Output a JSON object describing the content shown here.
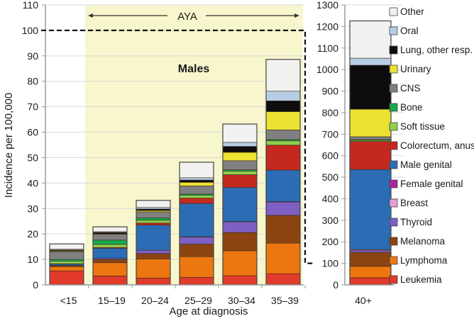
{
  "chart_data": {
    "type": "bar",
    "stacked": true,
    "title": "Males",
    "xlabel": "Age at diagnosis",
    "ylabel": "Incidence per 100,000",
    "bracket_label": "AYA",
    "bracket_range": [
      "15–19",
      "35–39"
    ],
    "left_panel": {
      "categories": [
        "<15",
        "15–19",
        "20–24",
        "25–29",
        "30–34",
        "35–39"
      ],
      "ylim": [
        0,
        110
      ],
      "yticks": [
        0,
        10,
        20,
        30,
        40,
        50,
        60,
        70,
        80,
        90,
        100,
        110
      ],
      "zoom_reference_line": 100
    },
    "right_panel": {
      "categories": [
        "40+"
      ],
      "ylim": [
        0,
        1300
      ],
      "yticks": [
        0,
        100,
        200,
        300,
        400,
        500,
        600,
        700,
        800,
        900,
        1000,
        1100,
        1200,
        1300
      ],
      "zoom_reference_range": [
        100,
        1200
      ]
    },
    "grid": true,
    "legend_position": "right",
    "series": [
      {
        "name": "Leukemia",
        "color": "#e03a2a",
        "values": [
          5.5,
          3.5,
          2.7,
          3.0,
          3.6,
          4.4
        ],
        "values_40plus": [
          33
        ]
      },
      {
        "name": "Lymphoma",
        "color": "#ec760f",
        "values": [
          1.7,
          5.2,
          7.5,
          8.1,
          9.8,
          12.0
        ],
        "values_40plus": [
          53
        ]
      },
      {
        "name": "Melanoma",
        "color": "#8b4410",
        "values": [
          0.3,
          1.3,
          2.1,
          4.9,
          7.2,
          10.9
        ],
        "values_40plus": [
          65
        ]
      },
      {
        "name": "Thyroid",
        "color": "#7e5fc2",
        "values": [
          0.1,
          0.4,
          1.3,
          2.8,
          4.2,
          5.3
        ],
        "values_40plus": [
          10
        ]
      },
      {
        "name": "Breast",
        "color": "#e2a0d8",
        "values": [
          0.0,
          0.0,
          0.0,
          0.1,
          0.1,
          0.1
        ],
        "values_40plus": [
          3
        ]
      },
      {
        "name": "Female genital",
        "color": "#b0239c",
        "values": [
          0.0,
          0.0,
          0.0,
          0.0,
          0.0,
          0.0
        ],
        "values_40plus": [
          0
        ]
      },
      {
        "name": "Male genital",
        "color": "#2b6cb4",
        "values": [
          0.6,
          4.0,
          9.9,
          13.1,
          13.4,
          12.4
        ],
        "values_40plus": [
          372
        ]
      },
      {
        "name": "Colorectum, anus",
        "color": "#c5281f",
        "values": [
          0.1,
          0.3,
          0.8,
          2.1,
          5.0,
          9.8
        ],
        "values_40plus": [
          130
        ]
      },
      {
        "name": "Soft tissue",
        "color": "#8fce4f",
        "values": [
          1.0,
          1.2,
          1.1,
          1.1,
          1.4,
          1.7
        ],
        "values_40plus": [
          5
        ]
      },
      {
        "name": "Bone",
        "color": "#19a84c",
        "values": [
          0.7,
          1.7,
          0.9,
          0.5,
          0.5,
          0.5
        ],
        "values_40plus": [
          4
        ]
      },
      {
        "name": "CNS",
        "color": "#808080",
        "values": [
          3.0,
          2.3,
          2.4,
          3.2,
          3.6,
          3.8
        ],
        "values_40plus": [
          13
        ]
      },
      {
        "name": "Urinary",
        "color": "#ece231",
        "values": [
          0.3,
          0.2,
          0.5,
          1.4,
          3.3,
          7.2
        ],
        "values_40plus": [
          128
        ]
      },
      {
        "name": "Lung, other resp.",
        "color": "#0d0d0d",
        "values": [
          0.4,
          0.5,
          0.6,
          0.9,
          2.3,
          4.2
        ],
        "values_40plus": [
          204
        ]
      },
      {
        "name": "Oral",
        "color": "#b7cde6",
        "values": [
          0.3,
          0.3,
          0.6,
          0.9,
          1.6,
          3.8
        ],
        "values_40plus": [
          33
        ]
      },
      {
        "name": "Other",
        "color": "#f1f1ef",
        "values": [
          2.1,
          1.9,
          2.8,
          6.1,
          7.2,
          12.5
        ],
        "values_40plus": [
          173
        ]
      }
    ]
  },
  "colors": {
    "aya_band": "#f7f6cc",
    "title": "#1a67b3",
    "grid": "#d9d9d9",
    "axis": "#9a9a9a"
  }
}
